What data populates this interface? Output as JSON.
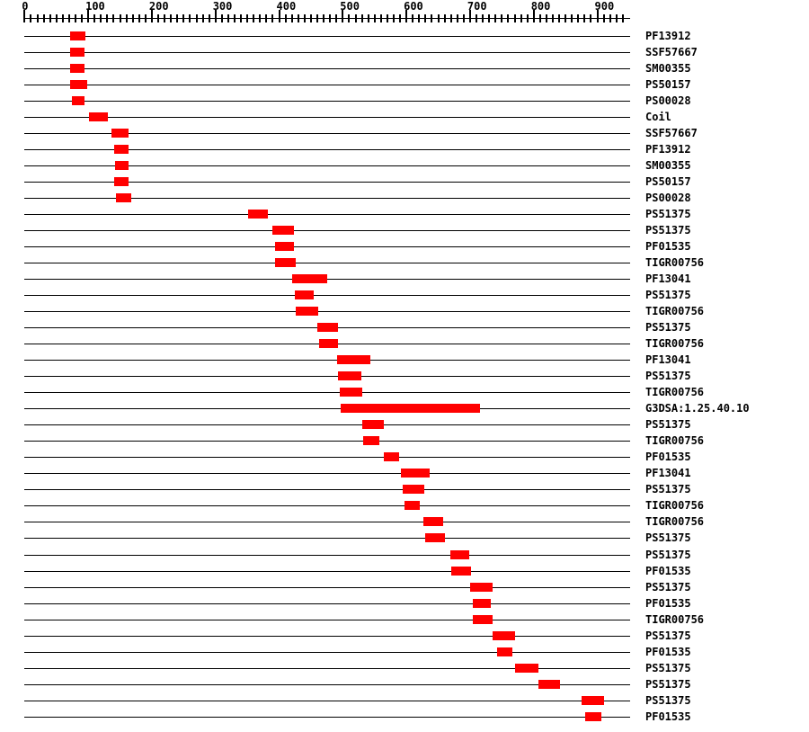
{
  "chart_data": {
    "type": "bar",
    "variant": "protein-domain-span-map",
    "orientation": "horizontal-range",
    "axis": {
      "min": 0,
      "max": 950,
      "major_tick_interval": 100,
      "minor_tick_interval": 10,
      "tick_labels": [
        "0",
        "100",
        "200",
        "300",
        "400",
        "500",
        "600",
        "700",
        "800",
        "900"
      ],
      "position": "top"
    },
    "colors": {
      "bar": "#ff0000",
      "line": "#000000",
      "text": "#000000",
      "background": "#ffffff"
    },
    "legend_position": "right",
    "features": [
      {
        "label": "PF13912",
        "start": 71,
        "end": 96
      },
      {
        "label": "SSF57667",
        "start": 71,
        "end": 94
      },
      {
        "label": "SM00355",
        "start": 71,
        "end": 94
      },
      {
        "label": "PS50157",
        "start": 72,
        "end": 99
      },
      {
        "label": "PS00028",
        "start": 75,
        "end": 94
      },
      {
        "label": "Coil",
        "start": 101,
        "end": 131
      },
      {
        "label": "SSF57667",
        "start": 136,
        "end": 163
      },
      {
        "label": "PF13912",
        "start": 141,
        "end": 164
      },
      {
        "label": "SM00355",
        "start": 142,
        "end": 164
      },
      {
        "label": "PS50157",
        "start": 141,
        "end": 163
      },
      {
        "label": "PS00028",
        "start": 144,
        "end": 167
      },
      {
        "label": "PS51375",
        "start": 351,
        "end": 383
      },
      {
        "label": "PS51375",
        "start": 389,
        "end": 424
      },
      {
        "label": "PF01535",
        "start": 393,
        "end": 423
      },
      {
        "label": "TIGR00756",
        "start": 394,
        "end": 426
      },
      {
        "label": "PF13041",
        "start": 421,
        "end": 475
      },
      {
        "label": "PS51375",
        "start": 425,
        "end": 455
      },
      {
        "label": "TIGR00756",
        "start": 426,
        "end": 462
      },
      {
        "label": "PS51375",
        "start": 460,
        "end": 492
      },
      {
        "label": "TIGR00756",
        "start": 463,
        "end": 493
      },
      {
        "label": "PF13041",
        "start": 491,
        "end": 544
      },
      {
        "label": "PS51375",
        "start": 492,
        "end": 529
      },
      {
        "label": "TIGR00756",
        "start": 495,
        "end": 530
      },
      {
        "label": "G3DSA:1.25.40.10",
        "start": 496,
        "end": 716
      },
      {
        "label": "PS51375",
        "start": 530,
        "end": 564
      },
      {
        "label": "TIGR00756",
        "start": 532,
        "end": 557
      },
      {
        "label": "PF01535",
        "start": 564,
        "end": 588
      },
      {
        "label": "PF13041",
        "start": 592,
        "end": 636
      },
      {
        "label": "PS51375",
        "start": 594,
        "end": 628
      },
      {
        "label": "TIGR00756",
        "start": 597,
        "end": 621
      },
      {
        "label": "TIGR00756",
        "start": 626,
        "end": 658
      },
      {
        "label": "PS51375",
        "start": 629,
        "end": 661
      },
      {
        "label": "PS51375",
        "start": 669,
        "end": 698
      },
      {
        "label": "PF01535",
        "start": 671,
        "end": 701
      },
      {
        "label": "PS51375",
        "start": 700,
        "end": 736
      },
      {
        "label": "PF01535",
        "start": 704,
        "end": 733
      },
      {
        "label": "TIGR00756",
        "start": 704,
        "end": 736
      },
      {
        "label": "PS51375",
        "start": 736,
        "end": 771
      },
      {
        "label": "PF01535",
        "start": 742,
        "end": 767
      },
      {
        "label": "PS51375",
        "start": 771,
        "end": 807
      },
      {
        "label": "PS51375",
        "start": 807,
        "end": 842
      },
      {
        "label": "PS51375",
        "start": 875,
        "end": 910
      },
      {
        "label": "PF01535",
        "start": 881,
        "end": 907
      }
    ]
  }
}
